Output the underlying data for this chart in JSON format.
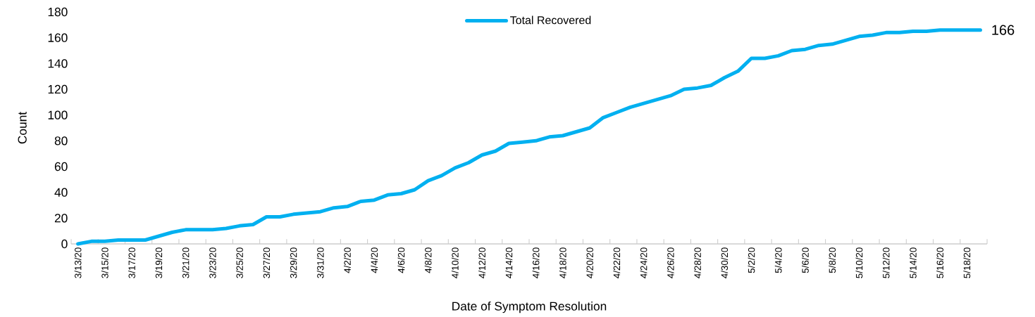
{
  "chart_data": {
    "type": "line",
    "xlabel": "Date of Symptom Resolution",
    "ylabel": "Count",
    "categories": [
      "3/13/20",
      null,
      "3/15/20",
      null,
      "3/17/20",
      null,
      "3/19/20",
      null,
      "3/21/20",
      null,
      "3/23/20",
      null,
      "3/25/20",
      null,
      "3/27/20",
      null,
      "3/29/20",
      null,
      "3/31/20",
      null,
      "4/2/20",
      null,
      "4/4/20",
      null,
      "4/6/20",
      null,
      "4/8/20",
      null,
      "4/10/20",
      null,
      "4/12/20",
      null,
      "4/14/20",
      null,
      "4/16/20",
      null,
      "4/18/20",
      null,
      "4/20/20",
      null,
      "4/22/20",
      null,
      "4/24/20",
      null,
      "4/26/20",
      null,
      "4/28/20",
      null,
      "4/30/20",
      null,
      "5/2/20",
      null,
      "5/4/20",
      null,
      "5/6/20",
      null,
      "5/8/20",
      null,
      "5/10/20",
      null,
      "5/12/20",
      null,
      "5/14/20",
      null,
      "5/16/20",
      null,
      "5/18/20",
      null
    ],
    "series": [
      {
        "name": "Total Recovered",
        "color": "#00b0f0",
        "values": [
          0,
          2,
          2,
          3,
          3,
          3,
          6,
          9,
          11,
          11,
          11,
          12,
          14,
          15,
          21,
          21,
          23,
          24,
          25,
          28,
          29,
          33,
          34,
          38,
          39,
          42,
          49,
          53,
          59,
          63,
          69,
          72,
          78,
          79,
          80,
          83,
          84,
          87,
          90,
          98,
          102,
          106,
          109,
          112,
          115,
          120,
          121,
          123,
          129,
          134,
          144,
          144,
          146,
          150,
          151,
          154,
          155,
          158,
          161,
          162,
          164,
          164,
          165,
          165,
          166,
          166,
          166,
          166
        ]
      }
    ],
    "ylim": [
      0,
      180
    ],
    "yticks": [
      0,
      20,
      40,
      60,
      80,
      100,
      120,
      140,
      160,
      180
    ],
    "legend": "top",
    "grid": false,
    "marker": "none",
    "line_style": "solid",
    "annotations": [
      "166"
    ]
  }
}
